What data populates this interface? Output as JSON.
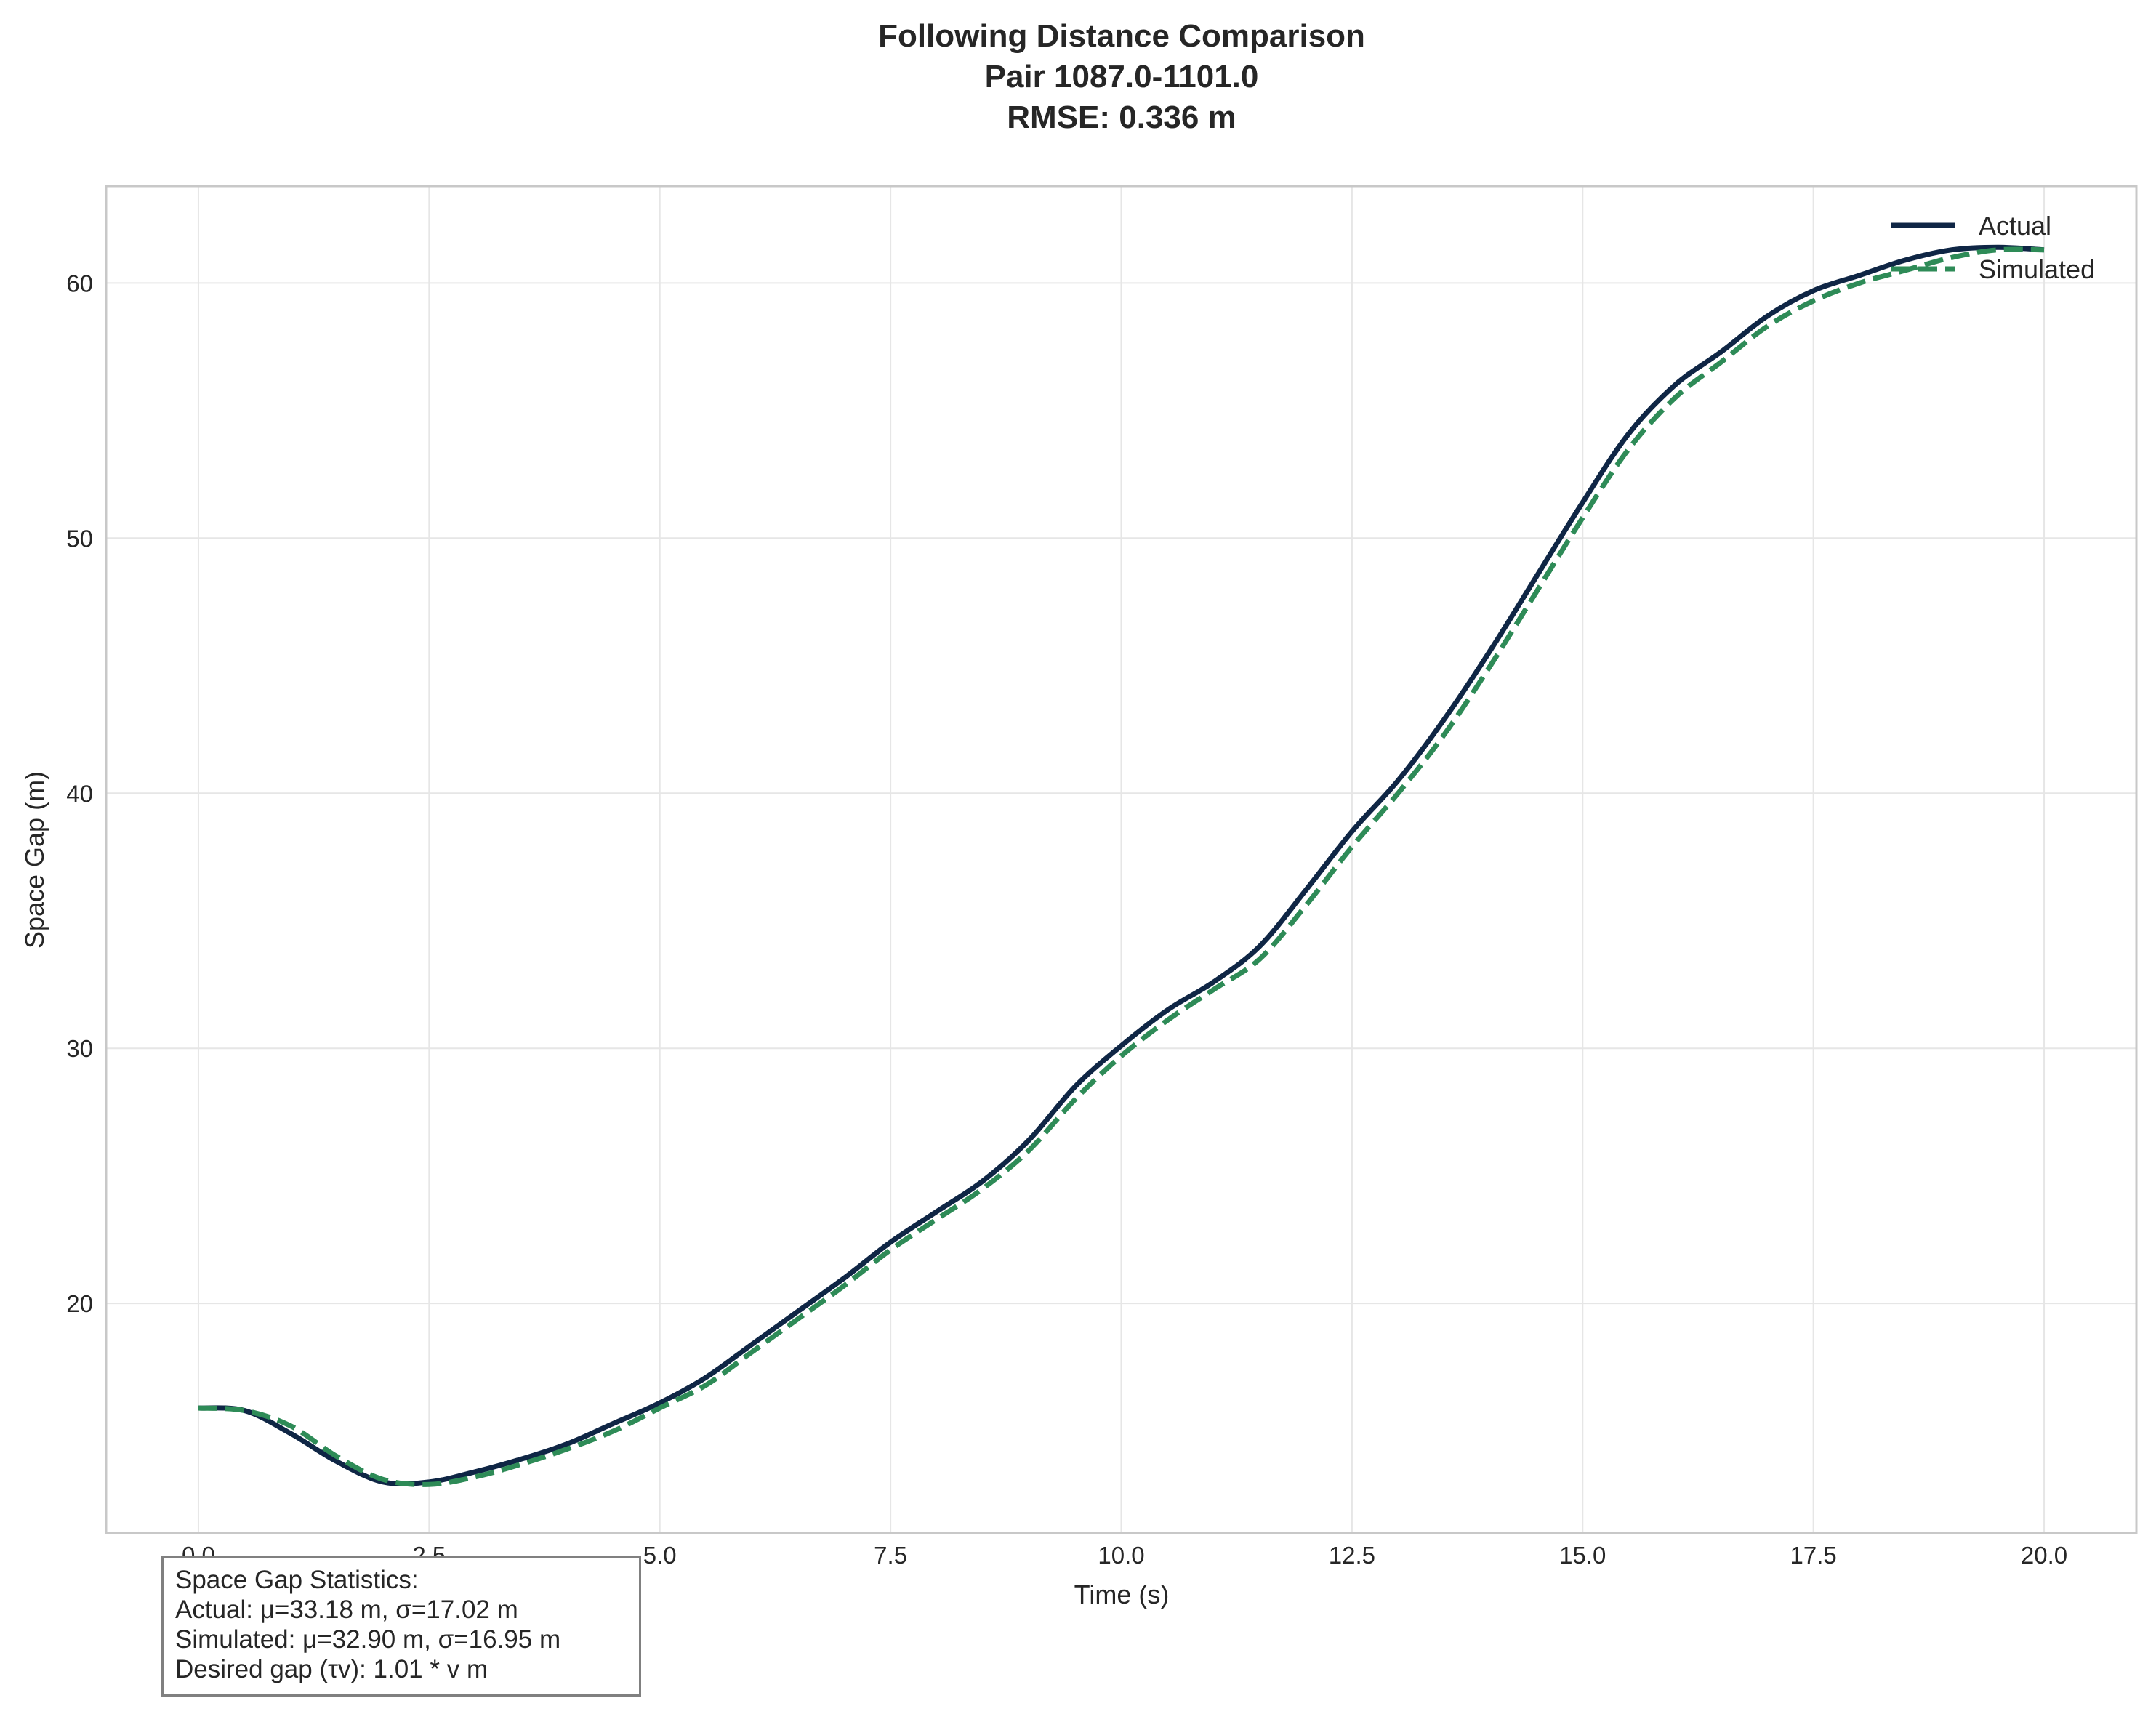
{
  "chart_data": {
    "type": "line",
    "title": [
      "Following Distance Comparison",
      "Pair 1087.0-1101.0",
      "RMSE: 0.336 m"
    ],
    "xlabel": "Time (s)",
    "ylabel": "Space Gap (m)",
    "xlim": [
      -1.0,
      21.0
    ],
    "ylim": [
      11.0,
      63.8
    ],
    "xticks": [
      0.0,
      2.5,
      5.0,
      7.5,
      10.0,
      12.5,
      15.0,
      17.5,
      20.0
    ],
    "xtick_labels": [
      "0.0",
      "2.5",
      "5.0",
      "7.5",
      "10.0",
      "12.5",
      "15.0",
      "17.5",
      "20.0"
    ],
    "yticks": [
      20,
      30,
      40,
      50,
      60
    ],
    "ytick_labels": [
      "20",
      "30",
      "40",
      "50",
      "60"
    ],
    "grid": true,
    "legend_position": "top-right",
    "series": [
      {
        "name": "Actual",
        "color": "#0f2645",
        "style": "solid",
        "x": [
          0.0,
          0.5,
          1.0,
          1.5,
          2.0,
          2.5,
          3.0,
          3.5,
          4.0,
          4.5,
          5.0,
          5.5,
          6.0,
          6.5,
          7.0,
          7.5,
          8.0,
          8.5,
          9.0,
          9.5,
          10.0,
          10.5,
          11.0,
          11.5,
          12.0,
          12.5,
          13.0,
          13.5,
          14.0,
          14.5,
          15.0,
          15.5,
          16.0,
          16.5,
          17.0,
          17.5,
          18.0,
          18.5,
          19.0,
          19.5,
          20.0
        ],
        "values": [
          15.9,
          15.8,
          14.9,
          13.8,
          13.0,
          13.0,
          13.4,
          13.9,
          14.5,
          15.3,
          16.1,
          17.1,
          18.4,
          19.7,
          21.0,
          22.4,
          23.6,
          24.8,
          26.4,
          28.5,
          30.1,
          31.5,
          32.6,
          34.0,
          36.2,
          38.5,
          40.5,
          42.9,
          45.6,
          48.5,
          51.4,
          54.1,
          56.0,
          57.3,
          58.7,
          59.7,
          60.3,
          60.9,
          61.3,
          61.4,
          61.3
        ]
      },
      {
        "name": "Simulated",
        "color": "#2e8b57",
        "style": "dashed",
        "x": [
          0.0,
          0.5,
          1.0,
          1.5,
          2.0,
          2.5,
          3.0,
          3.5,
          4.0,
          4.5,
          5.0,
          5.5,
          6.0,
          6.5,
          7.0,
          7.5,
          8.0,
          8.5,
          9.0,
          9.5,
          10.0,
          10.5,
          11.0,
          11.5,
          12.0,
          12.5,
          13.0,
          13.5,
          14.0,
          14.5,
          15.0,
          15.5,
          16.0,
          16.5,
          17.0,
          17.5,
          18.0,
          18.5,
          19.0,
          19.5,
          20.0
        ],
        "values": [
          15.9,
          15.8,
          15.2,
          14.0,
          13.1,
          12.9,
          13.2,
          13.7,
          14.3,
          15.0,
          15.9,
          16.8,
          18.1,
          19.4,
          20.7,
          22.1,
          23.3,
          24.5,
          26.0,
          28.0,
          29.7,
          31.1,
          32.3,
          33.5,
          35.6,
          37.9,
          40.0,
          42.3,
          45.0,
          47.9,
          50.8,
          53.5,
          55.5,
          56.9,
          58.3,
          59.3,
          60.0,
          60.5,
          61.0,
          61.3,
          61.3
        ]
      }
    ],
    "annotation": {
      "lines": [
        "Space Gap Statistics:",
        "Actual: μ=33.18 m, σ=17.02 m",
        "Simulated: μ=32.90 m, σ=16.95 m",
        "Desired gap (τv): 1.01 * v m"
      ]
    }
  }
}
